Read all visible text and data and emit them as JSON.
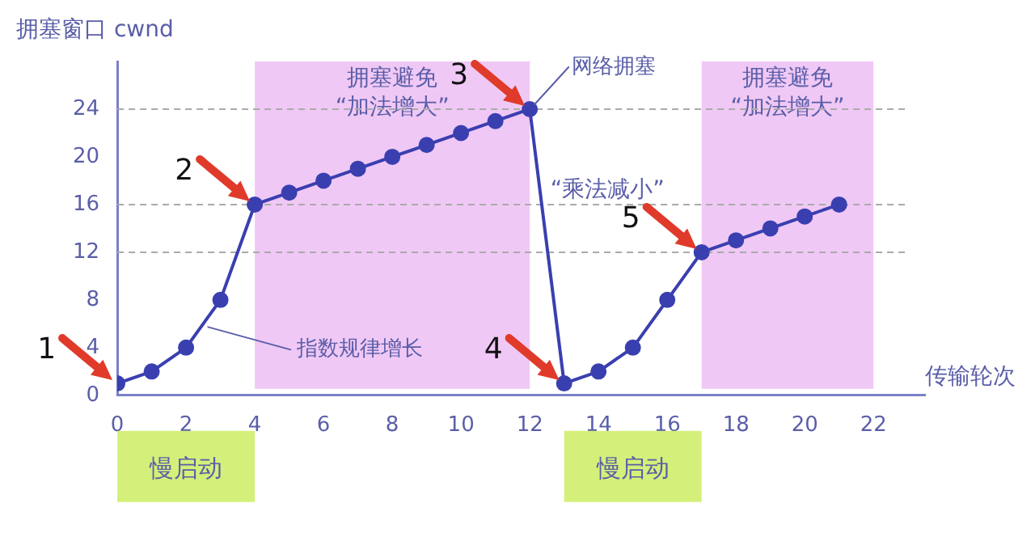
{
  "chart_data": {
    "type": "line",
    "xlabel": "传输轮次",
    "ylabel": "拥塞窗口 cwnd",
    "x": [
      0,
      1,
      2,
      3,
      4,
      5,
      6,
      7,
      8,
      9,
      10,
      11,
      12,
      13,
      14,
      15,
      16,
      17,
      18,
      19,
      20,
      21
    ],
    "series": [
      {
        "color": "#3a3fb0",
        "values": [
          1,
          2,
          4,
          8,
          16,
          17,
          18,
          19,
          20,
          21,
          22,
          23,
          24,
          1,
          2,
          4,
          8,
          12,
          13,
          14,
          15,
          16
        ]
      }
    ],
    "xlim": [
      0,
      23.5
    ],
    "xticks": [
      0,
      2,
      4,
      6,
      8,
      10,
      12,
      14,
      16,
      18,
      20,
      22
    ],
    "ylim": [
      0,
      28
    ],
    "yticks": [
      0,
      4,
      8,
      12,
      16,
      20,
      24
    ],
    "grid": false,
    "legend": false,
    "marker": "circle",
    "line_style": "solid",
    "ref_lines": [
      {
        "axis": "y",
        "value": 24,
        "color": "#aaaaaa",
        "line_style": "dashed"
      },
      {
        "axis": "y",
        "value": 16,
        "color": "#aaaaaa",
        "line_style": "dashed"
      },
      {
        "axis": "y",
        "value": 12,
        "color": "#aaaaaa",
        "line_style": "dashed"
      }
    ],
    "bands": [
      {
        "axis": "x",
        "from": 4,
        "to": 12,
        "label": "拥塞避免\n“加法增大”",
        "color": "#f0c8f5"
      },
      {
        "axis": "x",
        "from": 17,
        "to": 22,
        "label": "拥塞避免\n“加法增大”",
        "color": "#f0c8f5"
      }
    ],
    "annotations": [
      {
        "text": "1",
        "x": 0,
        "y": 1
      },
      {
        "text": "2",
        "x": 4,
        "y": 16
      },
      {
        "text": "3",
        "x": 12,
        "y": 24
      },
      {
        "text": "4",
        "x": 13,
        "y": 1
      },
      {
        "text": "5",
        "x": 17,
        "y": 12
      },
      {
        "text": "网络拥塞",
        "x": 12,
        "y": 24
      },
      {
        "text": "指数规律增长",
        "x": 2.5,
        "y": 6
      },
      "“乘法减小”",
      "慢启动",
      "慢启动"
    ]
  }
}
